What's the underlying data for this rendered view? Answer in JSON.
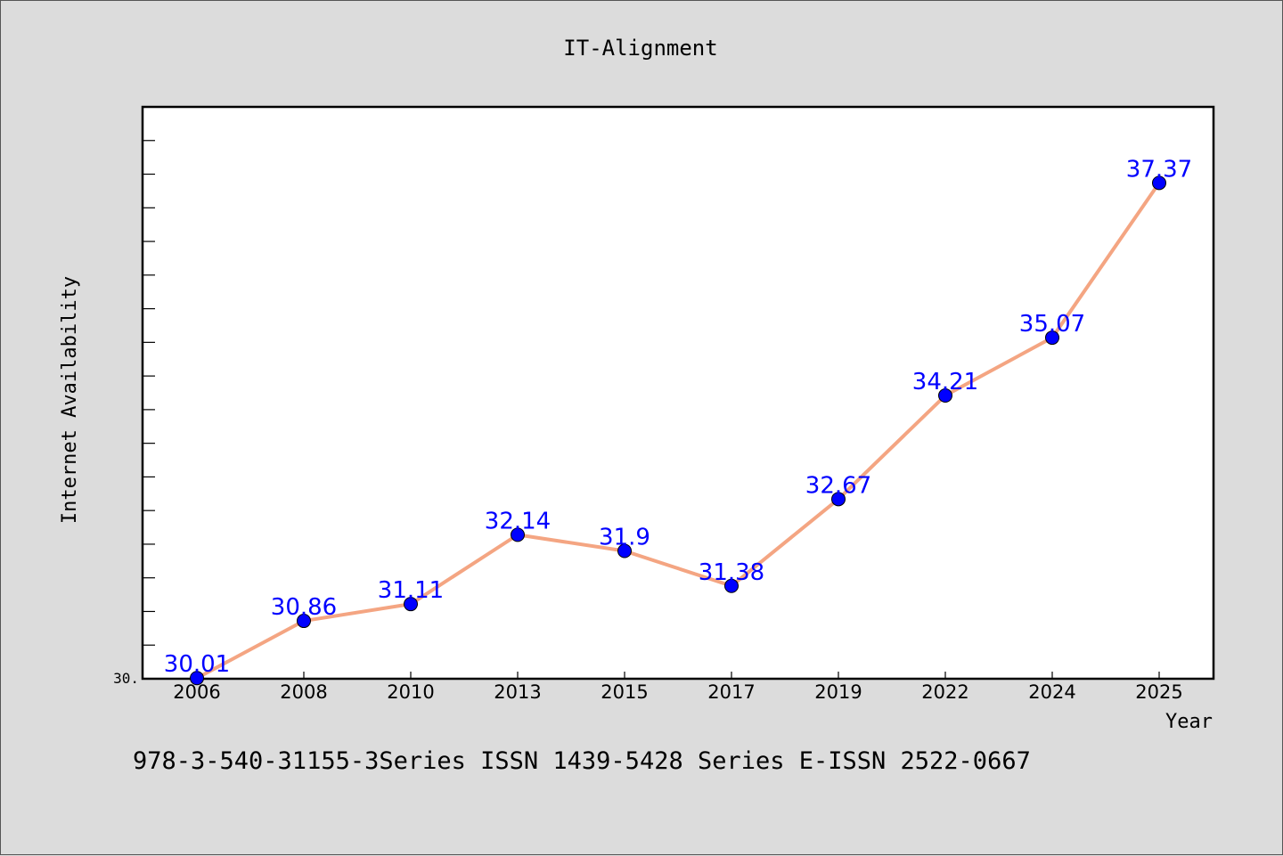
{
  "chart_data": {
    "type": "line",
    "title": "IT-Alignment",
    "xlabel": "Year",
    "ylabel": "Internet Availability",
    "categories": [
      "2006",
      "2008",
      "2010",
      "2013",
      "2015",
      "2017",
      "2019",
      "2022",
      "2024",
      "2025"
    ],
    "values": [
      30.01,
      30.86,
      31.11,
      32.14,
      31.9,
      31.38,
      32.67,
      34.21,
      35.07,
      37.37
    ],
    "data_labels": [
      "30.01",
      "30.86",
      "31.11",
      "32.14",
      "31.9",
      "31.38",
      "32.67",
      "34.21",
      "35.07",
      "37.37"
    ],
    "y_tick_label": "30.",
    "ylim": [
      30.0,
      38.5
    ],
    "grid": false,
    "line_color": "#f4a582",
    "marker_color": "#0000ff",
    "label_color": "#0000ff"
  },
  "footer": {
    "text": "978-3-540-31155-3Series ISSN 1439-5428 Series E-ISSN 2522-0667"
  }
}
